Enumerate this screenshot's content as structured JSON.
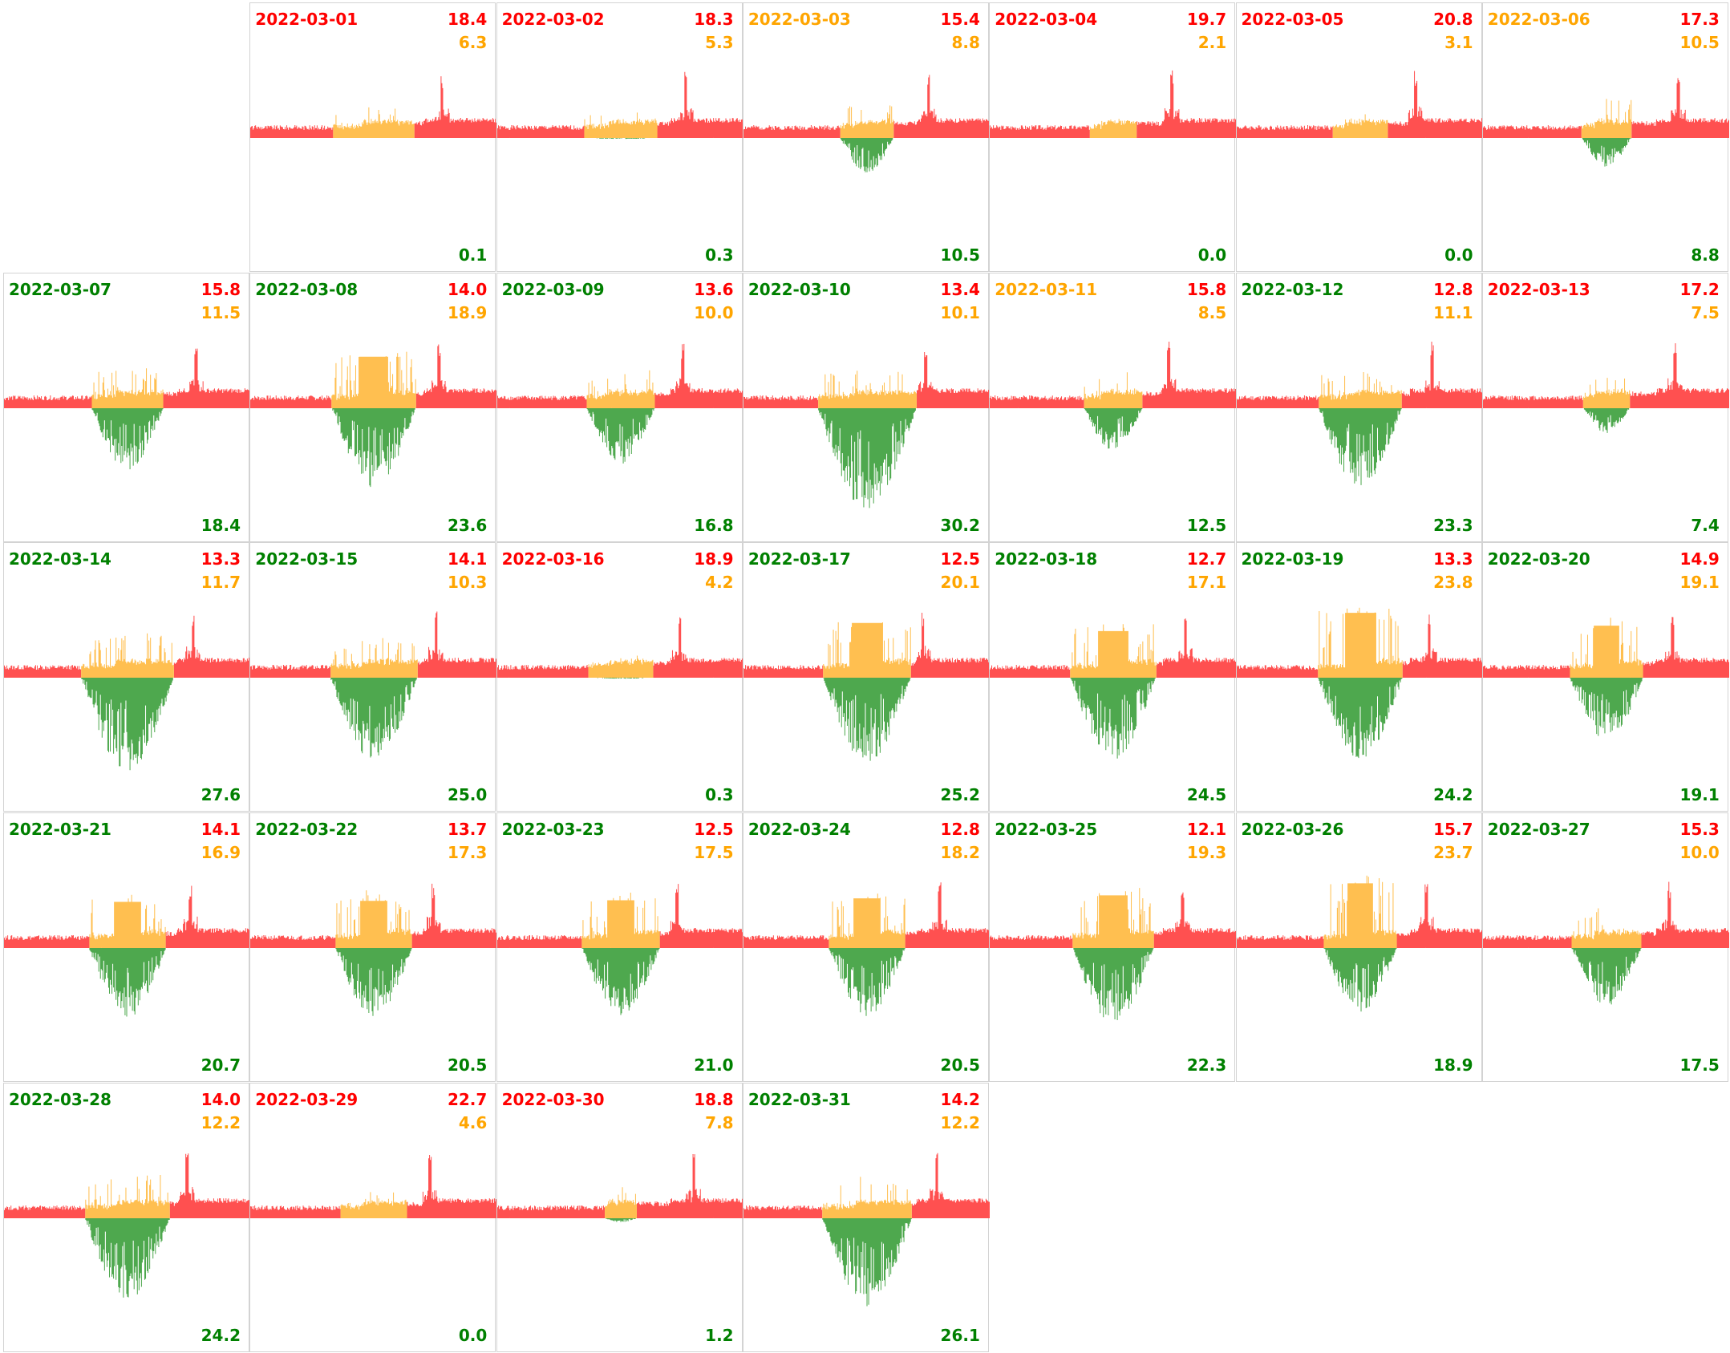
{
  "colors": {
    "consumption": "#ff5050",
    "self_consumption": "#ffbf50",
    "production": "#4ea84e",
    "text_red": "#ff0000",
    "text_orange": "#ffa500",
    "text_green": "#008000"
  },
  "chart_data": {
    "type": "area",
    "layout": "calendar grid, 7 columns, week rows",
    "days": [
      {
        "date": "2022-03-01",
        "label_color": "red",
        "red": "18.4",
        "orange": "6.3",
        "green": "0.1"
      },
      {
        "date": "2022-03-02",
        "label_color": "red",
        "red": "18.3",
        "orange": "5.3",
        "green": "0.3"
      },
      {
        "date": "2022-03-03",
        "label_color": "orange",
        "red": "15.4",
        "orange": "8.8",
        "green": "10.5"
      },
      {
        "date": "2022-03-04",
        "label_color": "red",
        "red": "19.7",
        "orange": "2.1",
        "green": "0.0"
      },
      {
        "date": "2022-03-05",
        "label_color": "red",
        "red": "20.8",
        "orange": "3.1",
        "green": "0.0"
      },
      {
        "date": "2022-03-06",
        "label_color": "orange",
        "red": "17.3",
        "orange": "10.5",
        "green": "8.8"
      },
      {
        "date": "2022-03-07",
        "label_color": "green",
        "red": "15.8",
        "orange": "11.5",
        "green": "18.4"
      },
      {
        "date": "2022-03-08",
        "label_color": "green",
        "red": "14.0",
        "orange": "18.9",
        "green": "23.6"
      },
      {
        "date": "2022-03-09",
        "label_color": "green",
        "red": "13.6",
        "orange": "10.0",
        "green": "16.8"
      },
      {
        "date": "2022-03-10",
        "label_color": "green",
        "red": "13.4",
        "orange": "10.1",
        "green": "30.2"
      },
      {
        "date": "2022-03-11",
        "label_color": "orange",
        "red": "15.8",
        "orange": "8.5",
        "green": "12.5"
      },
      {
        "date": "2022-03-12",
        "label_color": "green",
        "red": "12.8",
        "orange": "11.1",
        "green": "23.3"
      },
      {
        "date": "2022-03-13",
        "label_color": "red",
        "red": "17.2",
        "orange": "7.5",
        "green": "7.4"
      },
      {
        "date": "2022-03-14",
        "label_color": "green",
        "red": "13.3",
        "orange": "11.7",
        "green": "27.6"
      },
      {
        "date": "2022-03-15",
        "label_color": "green",
        "red": "14.1",
        "orange": "10.3",
        "green": "25.0"
      },
      {
        "date": "2022-03-16",
        "label_color": "red",
        "red": "18.9",
        "orange": "4.2",
        "green": "0.3"
      },
      {
        "date": "2022-03-17",
        "label_color": "green",
        "red": "12.5",
        "orange": "20.1",
        "green": "25.2"
      },
      {
        "date": "2022-03-18",
        "label_color": "green",
        "red": "12.7",
        "orange": "17.1",
        "green": "24.5"
      },
      {
        "date": "2022-03-19",
        "label_color": "green",
        "red": "13.3",
        "orange": "23.8",
        "green": "24.2"
      },
      {
        "date": "2022-03-20",
        "label_color": "green",
        "red": "14.9",
        "orange": "19.1",
        "green": "19.1"
      },
      {
        "date": "2022-03-21",
        "label_color": "green",
        "red": "14.1",
        "orange": "16.9",
        "green": "20.7"
      },
      {
        "date": "2022-03-22",
        "label_color": "green",
        "red": "13.7",
        "orange": "17.3",
        "green": "20.5"
      },
      {
        "date": "2022-03-23",
        "label_color": "green",
        "red": "12.5",
        "orange": "17.5",
        "green": "21.0"
      },
      {
        "date": "2022-03-24",
        "label_color": "green",
        "red": "12.8",
        "orange": "18.2",
        "green": "20.5"
      },
      {
        "date": "2022-03-25",
        "label_color": "green",
        "red": "12.1",
        "orange": "19.3",
        "green": "22.3"
      },
      {
        "date": "2022-03-26",
        "label_color": "green",
        "red": "15.7",
        "orange": "23.7",
        "green": "18.9"
      },
      {
        "date": "2022-03-27",
        "label_color": "green",
        "red": "15.3",
        "orange": "10.0",
        "green": "17.5"
      },
      {
        "date": "2022-03-28",
        "label_color": "green",
        "red": "14.0",
        "orange": "12.2",
        "green": "24.2"
      },
      {
        "date": "2022-03-29",
        "label_color": "red",
        "red": "22.7",
        "orange": "4.6",
        "green": "0.0"
      },
      {
        "date": "2022-03-30",
        "label_color": "red",
        "red": "18.8",
        "orange": "7.8",
        "green": "1.2"
      },
      {
        "date": "2022-03-31",
        "label_color": "green",
        "red": "14.2",
        "orange": "12.2",
        "green": "26.1"
      }
    ]
  }
}
